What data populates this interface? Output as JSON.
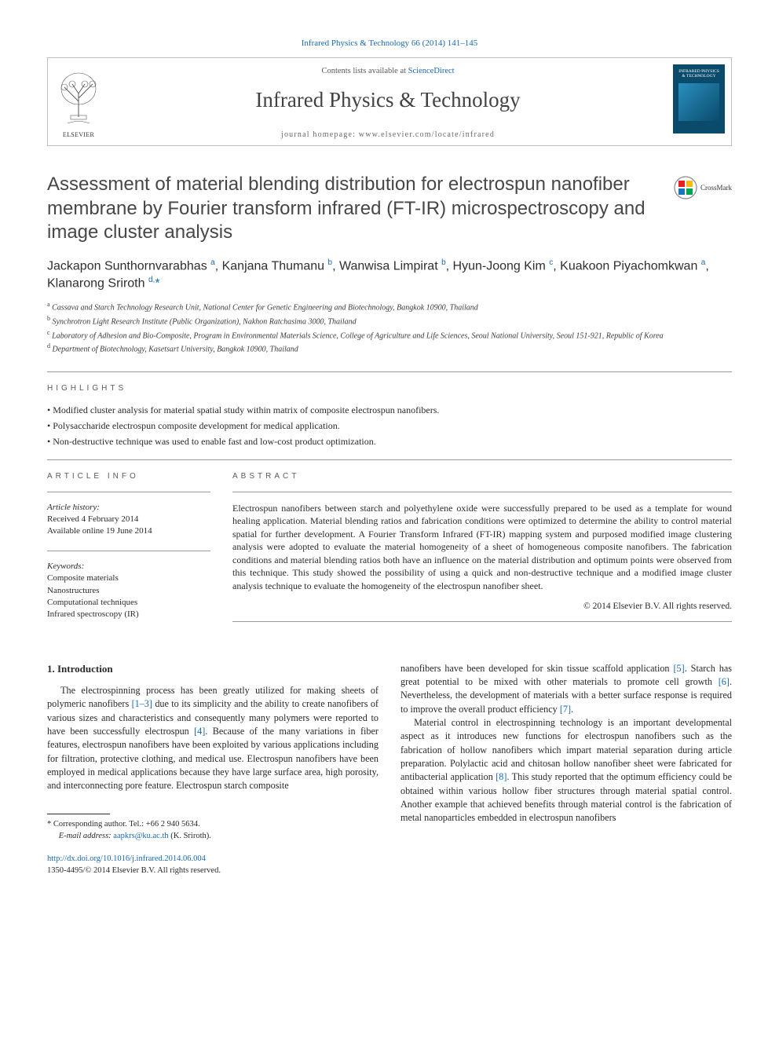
{
  "citation": {
    "text": "Infrared Physics & Technology 66 (2014) 141–145"
  },
  "header": {
    "publisher_label": "ELSEVIER",
    "contents_prefix": "Contents lists available at ",
    "contents_link": "ScienceDirect",
    "journal_title": "Infrared Physics & Technology",
    "homepage_text": "journal homepage: www.elsevier.com/locate/infrared",
    "cover_label_line1": "INFRARED PHYSICS",
    "cover_label_line2": "& TECHNOLOGY"
  },
  "crossmark": {
    "label": "CrossMark",
    "colors": {
      "tl": "#ed1c24",
      "tr": "#fdb913",
      "bl": "#00a551",
      "br": "#1b75bb"
    }
  },
  "article": {
    "title": "Assessment of material blending distribution for electrospun nanofiber membrane by Fourier transform infrared (FT-IR) microspectroscopy and image cluster analysis",
    "authors_html": "Jackapon Sunthornvarabhas <sup>a</sup>, Kanjana Thumanu <sup>b</sup>, Wanwisa Limpirat <sup>b</sup>, Hyun-Joong Kim <sup>c</sup>, Kuakoon Piyachomkwan <sup>a</sup>, Klanarong Sriroth <sup>d,</sup><span class=\"star\">*</span>",
    "affiliations": [
      {
        "key": "a",
        "text": "Cassava and Starch Technology Research Unit, National Center for Genetic Engineering and Biotechnology, Bangkok 10900, Thailand"
      },
      {
        "key": "b",
        "text": "Synchrotron Light Research Institute (Public Organization), Nakhon Ratchasima 3000, Thailand"
      },
      {
        "key": "c",
        "text": "Laboratory of Adhesion and Bio-Composite, Program in Environmental Materials Science, College of Agriculture and Life Sciences, Seoul National University, Seoul 151-921, Republic of Korea"
      },
      {
        "key": "d",
        "text": "Department of Biotechnology, Kasetsart University, Bangkok 10900, Thailand"
      }
    ]
  },
  "highlights": {
    "label": "HIGHLIGHTS",
    "items": [
      "Modified cluster analysis for material spatial study within matrix of composite electrospun nanofibers.",
      "Polysaccharide electrospun composite development for medical application.",
      "Non-destructive technique was used to enable fast and low-cost product optimization."
    ]
  },
  "article_info": {
    "label": "ARTICLE INFO",
    "history_label": "Article history:",
    "received": "Received 4 February 2014",
    "online": "Available online 19 June 2014",
    "keywords_label": "Keywords:",
    "keywords": [
      "Composite materials",
      "Nanostructures",
      "Computational techniques",
      "Infrared spectroscopy (IR)"
    ]
  },
  "abstract": {
    "label": "ABSTRACT",
    "text": "Electrospun nanofibers between starch and polyethylene oxide were successfully prepared to be used as a template for wound healing application. Material blending ratios and fabrication conditions were optimized to determine the ability to control material spatial for further development. A Fourier Transform Infrared (FT-IR) mapping system and purposed modified image clustering analysis were adopted to evaluate the material homogeneity of a sheet of homogeneous composite nanofibers. The fabrication conditions and material blending ratios both have an influence on the material distribution and optimum points were observed from this technique. This study showed the possibility of using a quick and non-destructive technique and a modified image cluster analysis technique to evaluate the homogeneity of the electrospun nanofiber sheet.",
    "copyright": "© 2014 Elsevier B.V. All rights reserved."
  },
  "body": {
    "heading": "1. Introduction",
    "col1_para1_pre": "The electrospinning process has been greatly utilized for making sheets of polymeric nanofibers ",
    "ref_1_3": "[1–3]",
    "col1_para1_mid": " due to its simplicity and the ability to create nanofibers of various sizes and characteristics and consequently many polymers were reported to have been successfully electrospun ",
    "ref_4": "[4]",
    "col1_para1_post": ". Because of the many variations in fiber features, electrospun nanofibers have been exploited by various applications including for filtration, protective clothing, and medical use. Electrospun nanofibers have been employed in medical applications because they have large surface area, high porosity, and interconnecting pore feature. Electrospun starch composite",
    "col2_para1_pre": "nanofibers have been developed for skin tissue scaffold application ",
    "ref_5": "[5]",
    "col2_para1_mid1": ". Starch has great potential to be mixed with other materials to promote cell growth ",
    "ref_6": "[6]",
    "col2_para1_mid2": ". Nevertheless, the development of materials with a better surface response is required to improve the overall product efficiency ",
    "ref_7": "[7]",
    "col2_para1_post": ".",
    "col2_para2_pre": "Material control in electrospinning technology is an important developmental aspect as it introduces new functions for electrospun nanofibers such as the fabrication of hollow nanofibers which impart material separation during article preparation. Polylactic acid and chitosan hollow nanofiber sheet were fabricated for antibacterial application ",
    "ref_8": "[8]",
    "col2_para2_post": ". This study reported that the optimum efficiency could be obtained within various hollow fiber structures through material spatial control. Another example that achieved benefits through material control is the fabrication of metal nanoparticles embedded in electrospun nanofibers"
  },
  "footer": {
    "corresponding": "* Corresponding author. Tel.: +66 2 940 5634.",
    "email_label": "E-mail address: ",
    "email": "aapkrs@ku.ac.th",
    "email_suffix": " (K. Sriroth).",
    "doi": "http://dx.doi.org/10.1016/j.infrared.2014.06.004",
    "issn_copyright": "1350-4495/© 2014 Elsevier B.V. All rights reserved."
  },
  "colors": {
    "link": "#1968b3",
    "text": "#2a2a2a",
    "rule": "#989898",
    "elsevier_orange": "#ef7f1a"
  }
}
